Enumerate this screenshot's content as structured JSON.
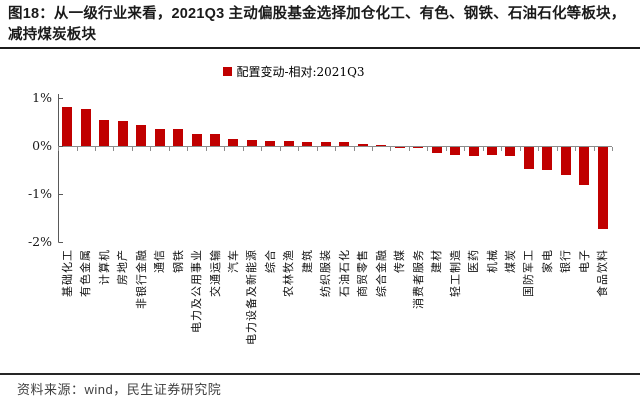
{
  "header": {
    "title": "图18：从一级行业来看，2021Q3 主动偏股基金选择加仓化工、有色、钢铁、石油石化等板块，减持煤炭板块"
  },
  "chart_data": {
    "type": "bar",
    "title": "",
    "legend": "配置变动-相对:2021Q3",
    "unit": "%",
    "categories": [
      "基础化工",
      "有色金属",
      "计算机",
      "房地产",
      "非银行金融",
      "通信",
      "钢铁",
      "电力及公用事业",
      "交通运输",
      "汽车",
      "电力设备及新能源",
      "综合",
      "农林牧渔",
      "建筑",
      "纺织服装",
      "石油石化",
      "商贸零售",
      "综合金融",
      "传媒",
      "消费者服务",
      "建材",
      "轻工制造",
      "医药",
      "机械",
      "煤炭",
      "国防军工",
      "家电",
      "银行",
      "电子",
      "食品饮料"
    ],
    "values": [
      0.82,
      0.78,
      0.54,
      0.52,
      0.43,
      0.36,
      0.35,
      0.26,
      0.24,
      0.15,
      0.13,
      0.1,
      0.1,
      0.08,
      0.08,
      0.08,
      0.05,
      0.01,
      -0.01,
      -0.03,
      -0.12,
      -0.16,
      -0.19,
      -0.17,
      -0.19,
      -0.46,
      -0.48,
      -0.58,
      -0.8,
      -1.71
    ],
    "ylim": [
      -2,
      1
    ],
    "y_ticks": [
      {
        "label": "1%",
        "value": 1
      },
      {
        "label": "0%",
        "value": 0
      },
      {
        "label": "-1%",
        "value": -1
      },
      {
        "label": "-2%",
        "value": -2
      }
    ],
    "grid": false,
    "legend_position": "top-center",
    "colors": {
      "bar": "#c00000",
      "axis": "#595959",
      "zero_line": "#8c8c8c"
    }
  },
  "footer": {
    "source": "资料来源：wind，民生证券研究院"
  }
}
